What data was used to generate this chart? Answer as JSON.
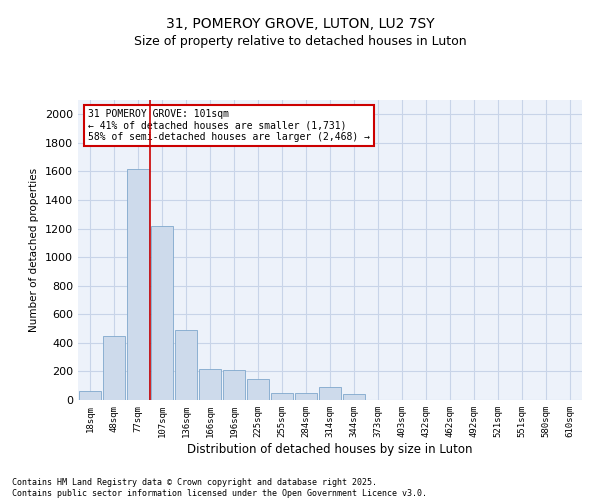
{
  "title_line1": "31, POMEROY GROVE, LUTON, LU2 7SY",
  "title_line2": "Size of property relative to detached houses in Luton",
  "xlabel": "Distribution of detached houses by size in Luton",
  "ylabel": "Number of detached properties",
  "categories": [
    "18sqm",
    "48sqm",
    "77sqm",
    "107sqm",
    "136sqm",
    "166sqm",
    "196sqm",
    "225sqm",
    "255sqm",
    "284sqm",
    "314sqm",
    "344sqm",
    "373sqm",
    "403sqm",
    "432sqm",
    "462sqm",
    "492sqm",
    "521sqm",
    "551sqm",
    "580sqm",
    "610sqm"
  ],
  "values": [
    60,
    450,
    1620,
    1220,
    490,
    220,
    210,
    150,
    50,
    50,
    90,
    45,
    0,
    0,
    0,
    0,
    0,
    0,
    0,
    0,
    0
  ],
  "bar_color": "#cddaeb",
  "bar_edge_color": "#7fa8cc",
  "vline_color": "#cc0000",
  "annotation_text": "31 POMEROY GROVE: 101sqm\n← 41% of detached houses are smaller (1,731)\n58% of semi-detached houses are larger (2,468) →",
  "annotation_box_color": "#cc0000",
  "annotation_fontsize": 7,
  "ylim": [
    0,
    2100
  ],
  "yticks": [
    0,
    200,
    400,
    600,
    800,
    1000,
    1200,
    1400,
    1600,
    1800,
    2000
  ],
  "grid_color": "#c8d4e8",
  "background_color": "#edf2fa",
  "footer_text": "Contains HM Land Registry data © Crown copyright and database right 2025.\nContains public sector information licensed under the Open Government Licence v3.0.",
  "title_fontsize": 10,
  "subtitle_fontsize": 9
}
